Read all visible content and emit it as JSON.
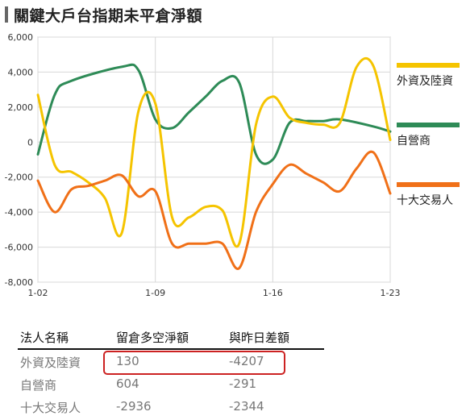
{
  "title": "關鍵大戶台指期未平倉淨額",
  "chart_data": {
    "type": "line",
    "ylim": [
      -8000,
      6000
    ],
    "yticks": [
      6000,
      4000,
      2000,
      0,
      -2000,
      -4000,
      -6000,
      -8000
    ],
    "ytick_labels": [
      "6,000",
      "4,000",
      "2,000",
      "0",
      "-2,000",
      "-4,000",
      "-6,000",
      "-8,000"
    ],
    "xlim": [
      2,
      23
    ],
    "xticks": [
      2,
      9,
      16,
      23
    ],
    "xtick_labels": [
      "1-02",
      "1-09",
      "1-16",
      "1-23"
    ],
    "grid": true,
    "legend_position": "right",
    "series": [
      {
        "name": "外資及陸資",
        "color": "#f5c400",
        "x": [
          2,
          3,
          4,
          5,
          6,
          7,
          8,
          9,
          10,
          11,
          12,
          13,
          14,
          15,
          16,
          17,
          18,
          19,
          20,
          21,
          22,
          23
        ],
        "y": [
          2700,
          -1300,
          -1700,
          -2300,
          -3200,
          -5200,
          1800,
          2200,
          -4300,
          -4300,
          -3700,
          -3900,
          -5800,
          1000,
          2600,
          1400,
          1100,
          1000,
          1100,
          4300,
          4337,
          130
        ]
      },
      {
        "name": "自營商",
        "color": "#2e8b57",
        "x": [
          2,
          3,
          4,
          7,
          8,
          9,
          10,
          11,
          12,
          13,
          14,
          15,
          16,
          17,
          18,
          19,
          20,
          22,
          23
        ],
        "y": [
          -700,
          2700,
          3500,
          4300,
          4100,
          1300,
          800,
          1700,
          2600,
          3500,
          3400,
          -700,
          -1000,
          1100,
          1200,
          1200,
          1300,
          895,
          604
        ]
      },
      {
        "name": "十大交易人",
        "color": "#f07018",
        "x": [
          2,
          3,
          4,
          5,
          6,
          7,
          8,
          9,
          10,
          11,
          12,
          13,
          14,
          15,
          16,
          17,
          18,
          19,
          20,
          21,
          22,
          23
        ],
        "y": [
          -2200,
          -4000,
          -2700,
          -2500,
          -2200,
          -1900,
          -3100,
          -2800,
          -5800,
          -5800,
          -5800,
          -5800,
          -7200,
          -4000,
          -2400,
          -1300,
          -1800,
          -2300,
          -2800,
          -1500,
          -592,
          -2936
        ]
      }
    ]
  },
  "summary": {
    "headers": [
      "法人名稱",
      "留倉多空淨額",
      "與昨日差額"
    ],
    "rows": [
      {
        "name": "外資及陸資",
        "net": "130",
        "change": "-4207"
      },
      {
        "name": "自營商",
        "net": "604",
        "change": "-291"
      },
      {
        "name": "十大交易人",
        "net": "-2936",
        "change": "-2344"
      }
    ]
  }
}
